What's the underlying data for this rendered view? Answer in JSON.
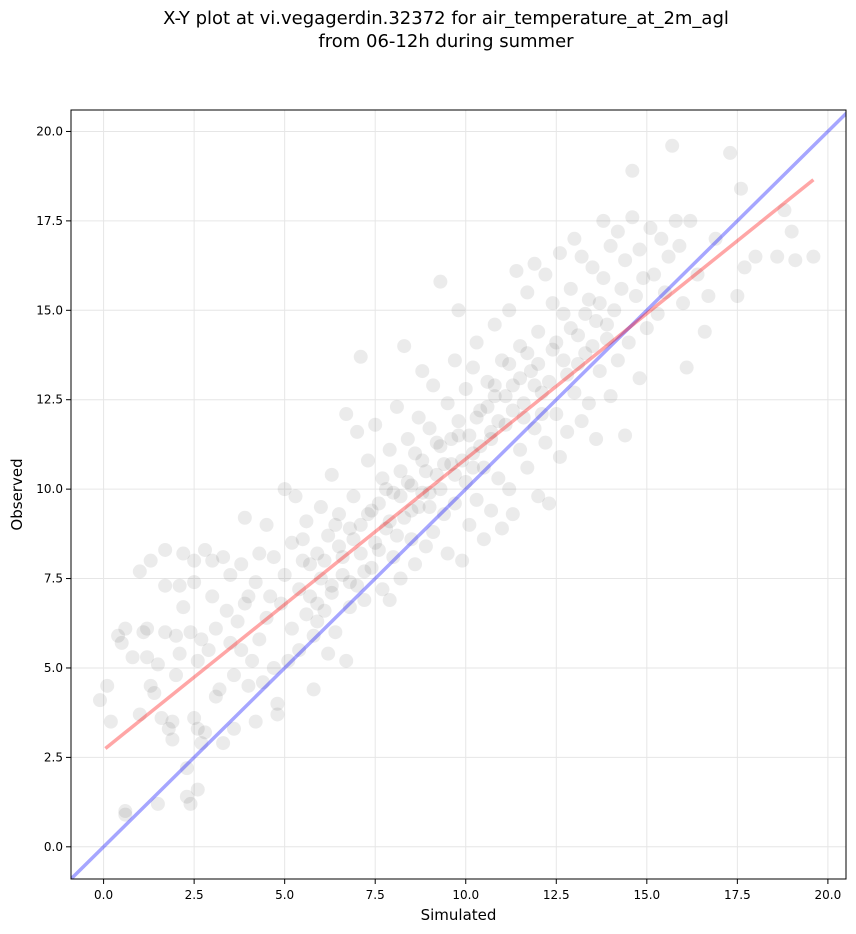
{
  "chart_data": {
    "type": "scatter",
    "title_line1": "X-Y plot at vi.vegagerdin.32372 for air_temperature_at_2m_agl",
    "title_line2": "from 06-12h during summer",
    "xlabel": "Simulated",
    "ylabel": "Observed",
    "xlim": [
      -0.9,
      20.5
    ],
    "ylim": [
      -0.9,
      20.6
    ],
    "xticks": [
      0.0,
      2.5,
      5.0,
      7.5,
      10.0,
      12.5,
      15.0,
      17.5,
      20.0
    ],
    "yticks": [
      0.0,
      2.5,
      5.0,
      7.5,
      10.0,
      12.5,
      15.0,
      17.5,
      20.0
    ],
    "xtick_labels": [
      "0.0",
      "2.5",
      "5.0",
      "7.5",
      "10.0",
      "12.5",
      "15.0",
      "17.5",
      "20.0"
    ],
    "ytick_labels": [
      "0.0",
      "2.5",
      "5.0",
      "7.5",
      "10.0",
      "12.5",
      "15.0",
      "17.5",
      "20.0"
    ],
    "grid": true,
    "point_color": "#000000",
    "point_alpha": 0.08,
    "identity_line": {
      "x": [
        -0.9,
        20.6
      ],
      "y": [
        -0.9,
        20.6
      ],
      "color": "#0000ff"
    },
    "regression_line": {
      "x": [
        0.05,
        19.6
      ],
      "y": [
        2.75,
        18.65
      ],
      "color": "#ff0000"
    },
    "points": [
      [
        -0.1,
        4.1
      ],
      [
        0.1,
        4.5
      ],
      [
        0.2,
        3.5
      ],
      [
        0.4,
        5.9
      ],
      [
        0.5,
        5.7
      ],
      [
        0.6,
        1.0
      ],
      [
        0.6,
        0.9
      ],
      [
        0.6,
        6.1
      ],
      [
        0.8,
        5.3
      ],
      [
        1.0,
        3.7
      ],
      [
        1.0,
        7.7
      ],
      [
        1.1,
        6.0
      ],
      [
        1.2,
        6.1
      ],
      [
        1.2,
        5.3
      ],
      [
        1.3,
        8.0
      ],
      [
        1.3,
        4.5
      ],
      [
        1.4,
        4.3
      ],
      [
        1.5,
        1.2
      ],
      [
        1.5,
        5.1
      ],
      [
        1.6,
        3.6
      ],
      [
        1.7,
        6.0
      ],
      [
        1.7,
        7.3
      ],
      [
        1.7,
        8.3
      ],
      [
        1.8,
        3.3
      ],
      [
        1.9,
        3.5
      ],
      [
        1.9,
        3.0
      ],
      [
        2.0,
        5.9
      ],
      [
        2.0,
        4.8
      ],
      [
        2.1,
        5.4
      ],
      [
        2.1,
        7.3
      ],
      [
        2.2,
        8.2
      ],
      [
        2.2,
        6.7
      ],
      [
        2.3,
        1.4
      ],
      [
        2.3,
        2.2
      ],
      [
        2.4,
        1.2
      ],
      [
        2.4,
        6.0
      ],
      [
        2.5,
        7.4
      ],
      [
        2.5,
        8.0
      ],
      [
        2.5,
        3.6
      ],
      [
        2.6,
        1.6
      ],
      [
        2.6,
        3.3
      ],
      [
        2.6,
        5.2
      ],
      [
        2.7,
        2.9
      ],
      [
        2.7,
        5.8
      ],
      [
        2.8,
        8.3
      ],
      [
        2.8,
        3.2
      ],
      [
        2.9,
        5.5
      ],
      [
        3.0,
        8.0
      ],
      [
        3.0,
        7.0
      ],
      [
        3.1,
        4.2
      ],
      [
        3.1,
        6.1
      ],
      [
        3.2,
        4.4
      ],
      [
        3.3,
        2.9
      ],
      [
        3.3,
        8.1
      ],
      [
        3.4,
        6.6
      ],
      [
        3.5,
        5.7
      ],
      [
        3.5,
        7.6
      ],
      [
        3.6,
        3.3
      ],
      [
        3.6,
        4.8
      ],
      [
        3.7,
        6.3
      ],
      [
        3.8,
        7.9
      ],
      [
        3.8,
        5.5
      ],
      [
        3.9,
        9.2
      ],
      [
        3.9,
        6.8
      ],
      [
        4.0,
        4.5
      ],
      [
        4.0,
        7.0
      ],
      [
        4.1,
        5.2
      ],
      [
        4.2,
        3.5
      ],
      [
        4.2,
        7.4
      ],
      [
        4.3,
        8.2
      ],
      [
        4.3,
        5.8
      ],
      [
        4.4,
        4.6
      ],
      [
        4.5,
        6.4
      ],
      [
        4.5,
        9.0
      ],
      [
        4.6,
        7.0
      ],
      [
        4.7,
        5.0
      ],
      [
        4.7,
        8.1
      ],
      [
        4.8,
        4.0
      ],
      [
        4.8,
        3.7
      ],
      [
        4.9,
        6.8
      ],
      [
        5.0,
        7.6
      ],
      [
        5.0,
        10.0
      ],
      [
        5.1,
        5.2
      ],
      [
        5.2,
        8.5
      ],
      [
        5.2,
        6.1
      ],
      [
        5.3,
        9.8
      ],
      [
        5.4,
        7.2
      ],
      [
        5.4,
        5.5
      ],
      [
        5.5,
        8.0
      ],
      [
        5.6,
        6.5
      ],
      [
        5.6,
        9.1
      ],
      [
        5.7,
        7.0
      ],
      [
        5.8,
        5.9
      ],
      [
        5.8,
        4.4
      ],
      [
        5.9,
        8.2
      ],
      [
        5.9,
        6.8
      ],
      [
        6.0,
        9.5
      ],
      [
        6.0,
        7.5
      ],
      [
        6.1,
        6.6
      ],
      [
        6.2,
        5.4
      ],
      [
        6.2,
        8.7
      ],
      [
        6.3,
        10.4
      ],
      [
        6.3,
        7.1
      ],
      [
        6.4,
        6.0
      ],
      [
        6.5,
        8.4
      ],
      [
        6.5,
        9.3
      ],
      [
        6.6,
        7.6
      ],
      [
        6.7,
        5.2
      ],
      [
        6.7,
        12.1
      ],
      [
        6.8,
        6.7
      ],
      [
        6.8,
        8.9
      ],
      [
        6.9,
        9.8
      ],
      [
        7.0,
        7.3
      ],
      [
        7.0,
        11.6
      ],
      [
        7.1,
        13.7
      ],
      [
        7.1,
        8.2
      ],
      [
        7.2,
        6.9
      ],
      [
        7.3,
        9.3
      ],
      [
        7.3,
        10.8
      ],
      [
        7.4,
        7.8
      ],
      [
        7.5,
        11.8
      ],
      [
        7.5,
        8.5
      ],
      [
        7.6,
        9.6
      ],
      [
        7.7,
        7.2
      ],
      [
        7.7,
        10.3
      ],
      [
        7.8,
        8.9
      ],
      [
        7.9,
        11.1
      ],
      [
        7.9,
        6.9
      ],
      [
        8.0,
        9.9
      ],
      [
        8.0,
        8.1
      ],
      [
        8.1,
        12.3
      ],
      [
        8.2,
        10.5
      ],
      [
        8.2,
        7.5
      ],
      [
        8.3,
        14.0
      ],
      [
        8.3,
        9.2
      ],
      [
        8.4,
        11.4
      ],
      [
        8.5,
        8.6
      ],
      [
        8.5,
        10.1
      ],
      [
        8.6,
        7.9
      ],
      [
        8.7,
        12.0
      ],
      [
        8.7,
        9.5
      ],
      [
        8.8,
        13.3
      ],
      [
        8.8,
        10.8
      ],
      [
        8.9,
        8.4
      ],
      [
        9.0,
        11.7
      ],
      [
        9.0,
        9.9
      ],
      [
        9.1,
        12.9
      ],
      [
        9.1,
        8.8
      ],
      [
        9.2,
        10.4
      ],
      [
        9.3,
        15.8
      ],
      [
        9.3,
        11.2
      ],
      [
        9.4,
        9.3
      ],
      [
        9.5,
        12.4
      ],
      [
        9.5,
        8.2
      ],
      [
        9.6,
        10.7
      ],
      [
        9.7,
        13.6
      ],
      [
        9.7,
        9.6
      ],
      [
        9.8,
        15.0
      ],
      [
        9.8,
        11.5
      ],
      [
        9.9,
        8.0
      ],
      [
        10.0,
        12.8
      ],
      [
        10.0,
        10.2
      ],
      [
        10.1,
        9.0
      ],
      [
        10.2,
        13.4
      ],
      [
        10.2,
        11.0
      ],
      [
        10.3,
        14.1
      ],
      [
        10.3,
        9.7
      ],
      [
        10.4,
        12.2
      ],
      [
        10.5,
        10.6
      ],
      [
        10.5,
        8.6
      ],
      [
        10.6,
        13.0
      ],
      [
        10.7,
        11.4
      ],
      [
        10.7,
        9.4
      ],
      [
        10.8,
        14.6
      ],
      [
        10.8,
        12.6
      ],
      [
        10.9,
        10.3
      ],
      [
        11.0,
        13.6
      ],
      [
        11.0,
        8.9
      ],
      [
        11.1,
        11.8
      ],
      [
        11.2,
        15.0
      ],
      [
        11.2,
        10.0
      ],
      [
        11.3,
        12.9
      ],
      [
        11.3,
        9.3
      ],
      [
        11.4,
        16.1
      ],
      [
        11.5,
        11.1
      ],
      [
        11.5,
        14.0
      ],
      [
        11.6,
        12.4
      ],
      [
        11.7,
        10.6
      ],
      [
        11.7,
        15.5
      ],
      [
        11.8,
        13.3
      ],
      [
        11.9,
        11.7
      ],
      [
        11.9,
        16.3
      ],
      [
        12.0,
        9.8
      ],
      [
        12.0,
        14.4
      ],
      [
        12.1,
        12.7
      ],
      [
        12.2,
        16.0
      ],
      [
        12.2,
        11.3
      ],
      [
        12.3,
        9.6
      ],
      [
        12.4,
        13.9
      ],
      [
        12.4,
        15.2
      ],
      [
        12.5,
        12.1
      ],
      [
        12.6,
        16.6
      ],
      [
        12.6,
        10.9
      ],
      [
        12.7,
        14.9
      ],
      [
        12.8,
        13.2
      ],
      [
        12.8,
        11.6
      ],
      [
        12.9,
        15.6
      ],
      [
        13.0,
        17.0
      ],
      [
        13.0,
        12.7
      ],
      [
        13.1,
        14.3
      ],
      [
        13.2,
        11.9
      ],
      [
        13.2,
        16.5
      ],
      [
        13.3,
        13.8
      ],
      [
        13.4,
        15.3
      ],
      [
        13.4,
        12.4
      ],
      [
        13.5,
        16.2
      ],
      [
        13.6,
        14.7
      ],
      [
        13.6,
        11.4
      ],
      [
        13.7,
        13.3
      ],
      [
        13.8,
        15.9
      ],
      [
        13.8,
        17.5
      ],
      [
        13.9,
        14.2
      ],
      [
        14.0,
        12.6
      ],
      [
        14.0,
        16.8
      ],
      [
        14.1,
        15.0
      ],
      [
        14.2,
        13.6
      ],
      [
        14.2,
        17.2
      ],
      [
        14.3,
        15.6
      ],
      [
        14.4,
        11.5
      ],
      [
        14.4,
        16.4
      ],
      [
        14.5,
        14.1
      ],
      [
        14.6,
        17.6
      ],
      [
        14.6,
        18.9
      ],
      [
        14.7,
        15.4
      ],
      [
        14.8,
        13.1
      ],
      [
        14.8,
        16.7
      ],
      [
        14.9,
        15.9
      ],
      [
        15.0,
        14.5
      ],
      [
        15.1,
        17.3
      ],
      [
        15.2,
        16.0
      ],
      [
        15.3,
        14.9
      ],
      [
        15.4,
        17.0
      ],
      [
        15.5,
        15.5
      ],
      [
        15.6,
        16.5
      ],
      [
        15.7,
        19.6
      ],
      [
        15.8,
        17.5
      ],
      [
        15.9,
        16.8
      ],
      [
        16.0,
        15.2
      ],
      [
        16.1,
        13.4
      ],
      [
        16.2,
        17.5
      ],
      [
        16.4,
        16.0
      ],
      [
        16.6,
        14.4
      ],
      [
        16.7,
        15.4
      ],
      [
        16.9,
        17.0
      ],
      [
        17.3,
        19.4
      ],
      [
        17.5,
        15.4
      ],
      [
        17.6,
        18.4
      ],
      [
        17.7,
        16.2
      ],
      [
        18.0,
        16.5
      ],
      [
        18.6,
        16.5
      ],
      [
        18.8,
        17.8
      ],
      [
        19.0,
        17.2
      ],
      [
        19.1,
        16.4
      ],
      [
        19.6,
        16.5
      ],
      [
        5.5,
        8.6
      ],
      [
        5.7,
        7.9
      ],
      [
        5.9,
        6.3
      ],
      [
        6.1,
        8.0
      ],
      [
        6.3,
        7.3
      ],
      [
        6.4,
        9.0
      ],
      [
        6.6,
        8.1
      ],
      [
        6.8,
        7.4
      ],
      [
        6.9,
        8.6
      ],
      [
        7.1,
        9.0
      ],
      [
        7.2,
        7.7
      ],
      [
        7.4,
        9.4
      ],
      [
        7.6,
        8.3
      ],
      [
        7.8,
        10.0
      ],
      [
        7.9,
        9.1
      ],
      [
        8.1,
        8.7
      ],
      [
        8.2,
        9.8
      ],
      [
        8.4,
        10.2
      ],
      [
        8.5,
        9.4
      ],
      [
        8.6,
        11.0
      ],
      [
        8.8,
        9.9
      ],
      [
        8.9,
        10.5
      ],
      [
        9.0,
        9.5
      ],
      [
        9.2,
        11.3
      ],
      [
        9.3,
        10.0
      ],
      [
        9.4,
        10.7
      ],
      [
        9.6,
        11.4
      ],
      [
        9.7,
        10.4
      ],
      [
        9.8,
        11.9
      ],
      [
        9.9,
        10.8
      ],
      [
        10.1,
        11.5
      ],
      [
        10.2,
        10.6
      ],
      [
        10.3,
        12.0
      ],
      [
        10.4,
        11.2
      ],
      [
        10.6,
        12.3
      ],
      [
        10.7,
        11.6
      ],
      [
        10.8,
        12.9
      ],
      [
        10.9,
        11.9
      ],
      [
        11.1,
        12.6
      ],
      [
        11.2,
        13.5
      ],
      [
        11.3,
        12.2
      ],
      [
        11.5,
        13.1
      ],
      [
        11.6,
        12.0
      ],
      [
        11.7,
        13.8
      ],
      [
        11.9,
        12.9
      ],
      [
        12.0,
        13.5
      ],
      [
        12.1,
        12.1
      ],
      [
        12.3,
        13.0
      ],
      [
        12.5,
        14.1
      ],
      [
        12.7,
        13.6
      ],
      [
        12.9,
        14.5
      ],
      [
        13.1,
        13.5
      ],
      [
        13.3,
        14.9
      ],
      [
        13.5,
        14.0
      ],
      [
        13.7,
        15.2
      ],
      [
        13.9,
        14.6
      ]
    ]
  }
}
